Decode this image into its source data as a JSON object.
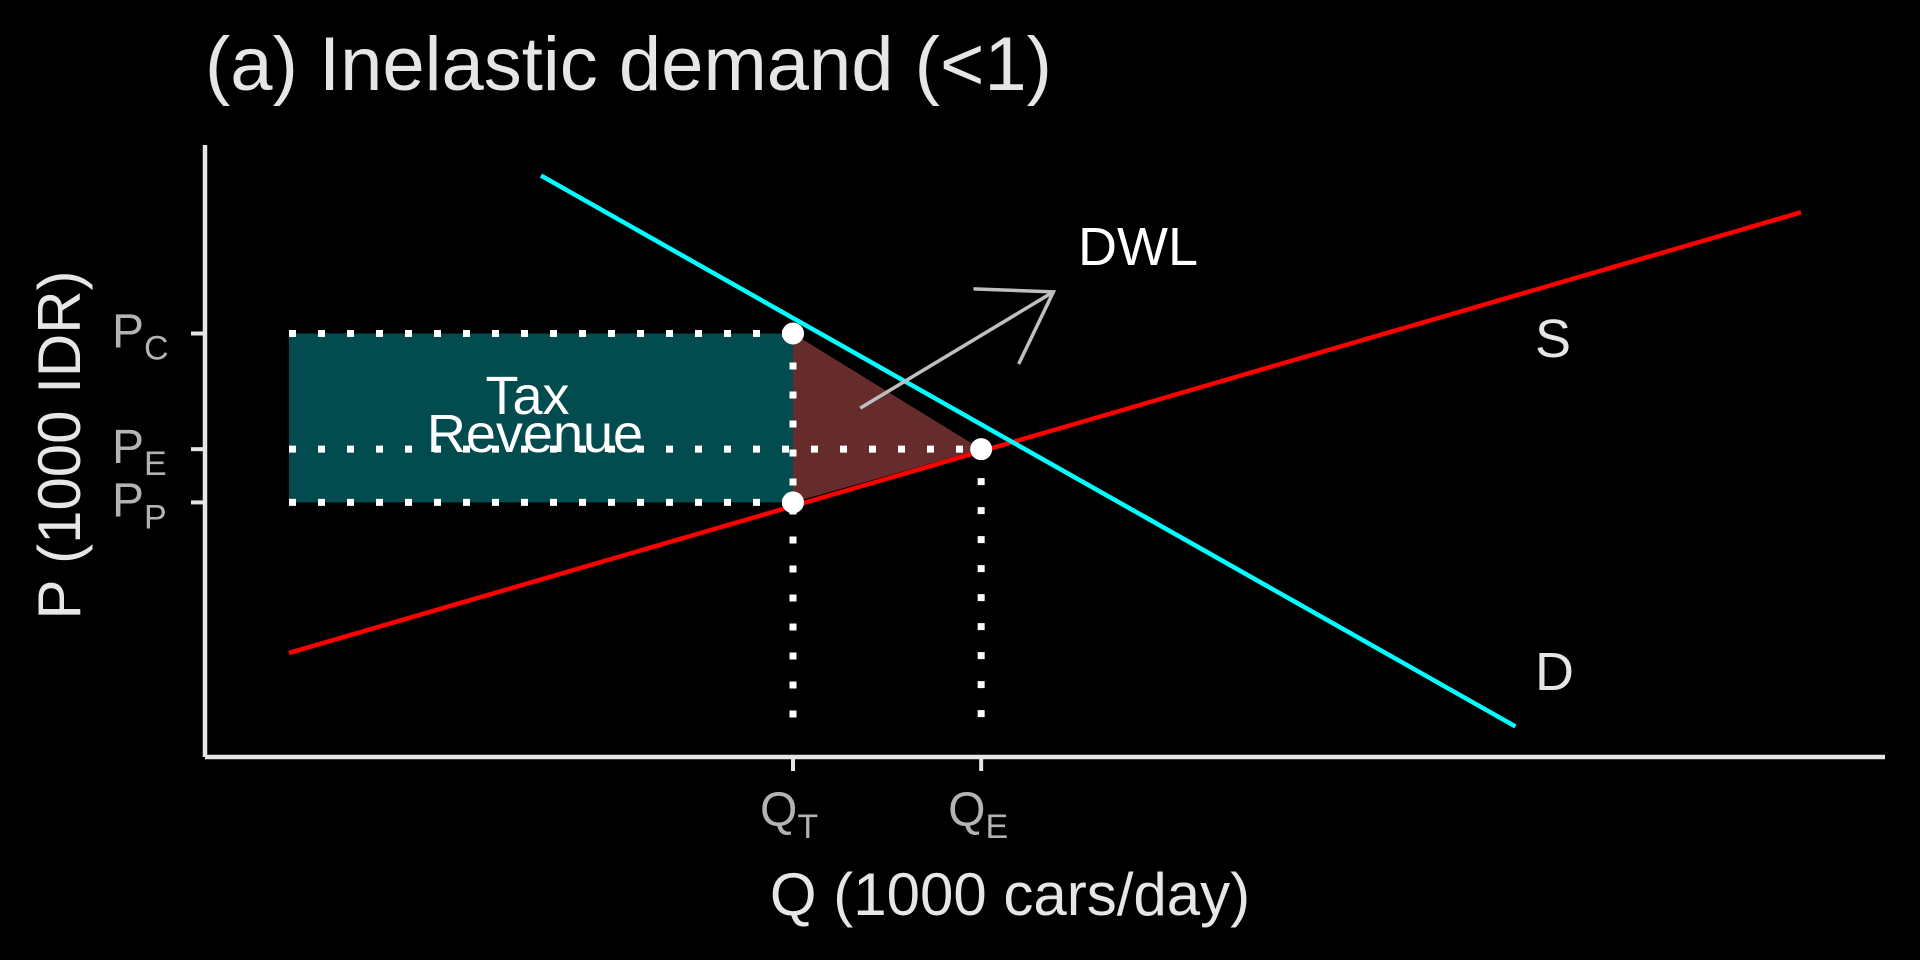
{
  "chart_data": {
    "type": "line",
    "title": "(a) Inelastic demand (<1)",
    "xlabel": "Q (1000 cars/day)",
    "ylabel": "P (1000 IDR)",
    "xlim": [
      0,
      1
    ],
    "ylim": [
      0,
      1
    ],
    "grid": false,
    "legend": "none",
    "series": [
      {
        "name": "S",
        "color": "#ff0000",
        "x": [
          0.05,
          0.95
        ],
        "y": [
          0.17,
          0.89
        ]
      },
      {
        "name": "D",
        "color": "#00ffff",
        "x": [
          0.2,
          0.78
        ],
        "y": [
          0.95,
          0.05
        ]
      }
    ],
    "x_ticks": [
      {
        "main": "Q",
        "sub": "T",
        "value": 0.35
      },
      {
        "main": "Q",
        "sub": "E",
        "value": 0.462
      }
    ],
    "y_ticks": [
      {
        "main": "P",
        "sub": "C",
        "value": 0.692
      },
      {
        "main": "P",
        "sub": "E",
        "value": 0.503
      },
      {
        "main": "P",
        "sub": "P",
        "value": 0.416
      }
    ],
    "points": [
      {
        "label": "Pc at QT",
        "x": 0.35,
        "y": 0.692
      },
      {
        "label": "Pp at QT",
        "x": 0.35,
        "y": 0.416
      },
      {
        "label": "Equilibrium",
        "x": 0.462,
        "y": 0.503
      }
    ],
    "regions": {
      "tax_revenue": {
        "x0": 0.05,
        "x1": 0.35,
        "y0": 0.416,
        "y1": 0.692,
        "color": "#024b4e"
      },
      "dwl": {
        "polygon": [
          [
            0.35,
            0.692
          ],
          [
            0.35,
            0.416
          ],
          [
            0.462,
            0.503
          ]
        ],
        "color": "#662b2b"
      }
    },
    "annotations": [
      {
        "text_lines": [
          "Tax",
          "Revenue"
        ]
      },
      {
        "text": "DWL",
        "arrow_from": [
          0.39,
          0.57
        ],
        "arrow_to": [
          0.505,
          0.76
        ]
      }
    ],
    "curve_labels": {
      "supply": "S",
      "demand": "D"
    }
  },
  "colors": {
    "background": "#000000",
    "text": "#e6e6e6",
    "tick_text": "#b3b3b3",
    "axis": "#e6e6e6",
    "supply": "#ff0000",
    "demand": "#00ffff",
    "tax_revenue": "#024b4e",
    "dwl": "#662b2b",
    "guides": "#ffffff",
    "arrow": "#bfbfbf"
  }
}
